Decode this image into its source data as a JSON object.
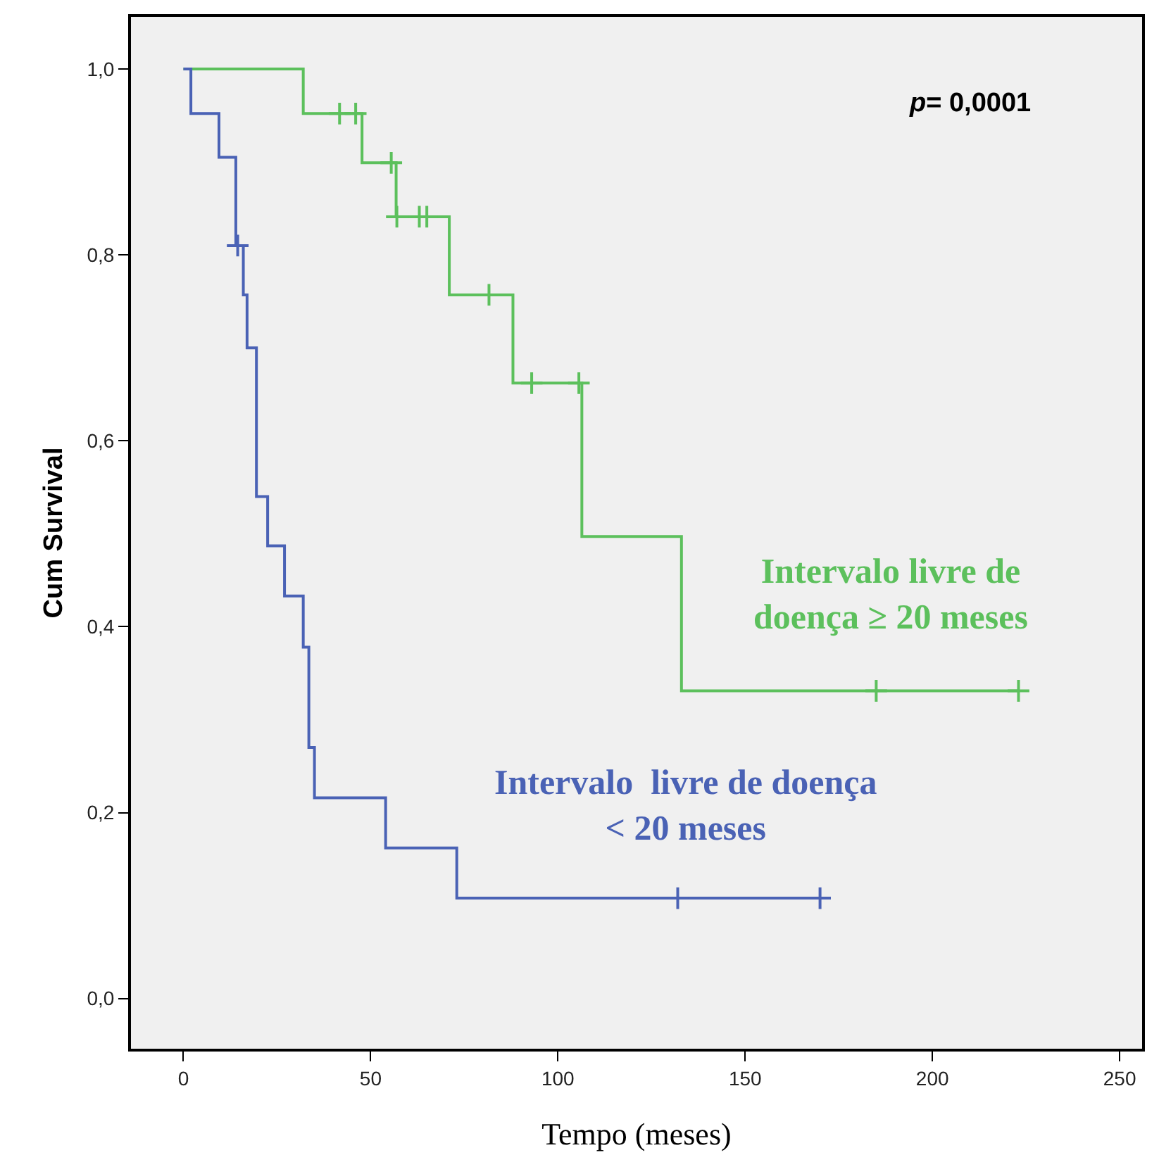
{
  "chart_data": {
    "type": "step",
    "xlabel": "Tempo (meses)",
    "ylabel": "Cum Survival",
    "xlim": [
      -14,
      256
    ],
    "xticks": [
      0,
      50,
      100,
      150,
      200,
      250
    ],
    "ylim": [
      -0.054,
      1.056
    ],
    "yticks": [
      {
        "value": 0,
        "label": "0,0"
      },
      {
        "value": 0.2,
        "label": "0,2"
      },
      {
        "value": 0.4,
        "label": "0,4"
      },
      {
        "value": 0.6,
        "label": "0,6"
      },
      {
        "value": 0.8,
        "label": "0,8"
      },
      {
        "value": 1,
        "label": "1,0"
      }
    ],
    "grid": false,
    "line_style": "solid",
    "series": [
      {
        "color": "#5cc05c",
        "x": [
          0,
          32,
          47.7,
          56.8,
          71,
          88,
          106.4,
          133,
          223
        ],
        "values": [
          1,
          0.952,
          0.899,
          0.841,
          0.757,
          0.662,
          0.497,
          0.331,
          0.331
        ]
      },
      {
        "color": "#4a62b5",
        "x": [
          0,
          2,
          9.5,
          14,
          16,
          17,
          19.5,
          22.5,
          27,
          32,
          33.5,
          35,
          54,
          73,
          170
        ],
        "values": [
          1,
          0.952,
          0.905,
          0.81,
          0.757,
          0.7,
          0.54,
          0.487,
          0.433,
          0.378,
          0.27,
          0.216,
          0.162,
          0.108,
          0.108
        ]
      },
      {
        "type": "scatter",
        "marker": "cross",
        "color": "#5cc05c",
        "x": [
          41.7,
          46,
          55.5,
          57,
          63,
          65,
          81.6,
          93,
          105.6,
          185,
          223
        ],
        "values": [
          0.952,
          0.952,
          0.899,
          0.841,
          0.841,
          0.841,
          0.757,
          0.662,
          0.662,
          0.331,
          0.331
        ]
      },
      {
        "type": "scatter",
        "marker": "cross",
        "color": "#4a62b5",
        "x": [
          14.5,
          132,
          170
        ],
        "values": [
          0.81,
          0.108,
          0.108
        ]
      }
    ],
    "annotations": [
      "Intervalo livre de\ndoença ≥ 20 meses",
      "Intervalo  livre de doença\n< 20 meses",
      "p= 0,0001"
    ]
  }
}
